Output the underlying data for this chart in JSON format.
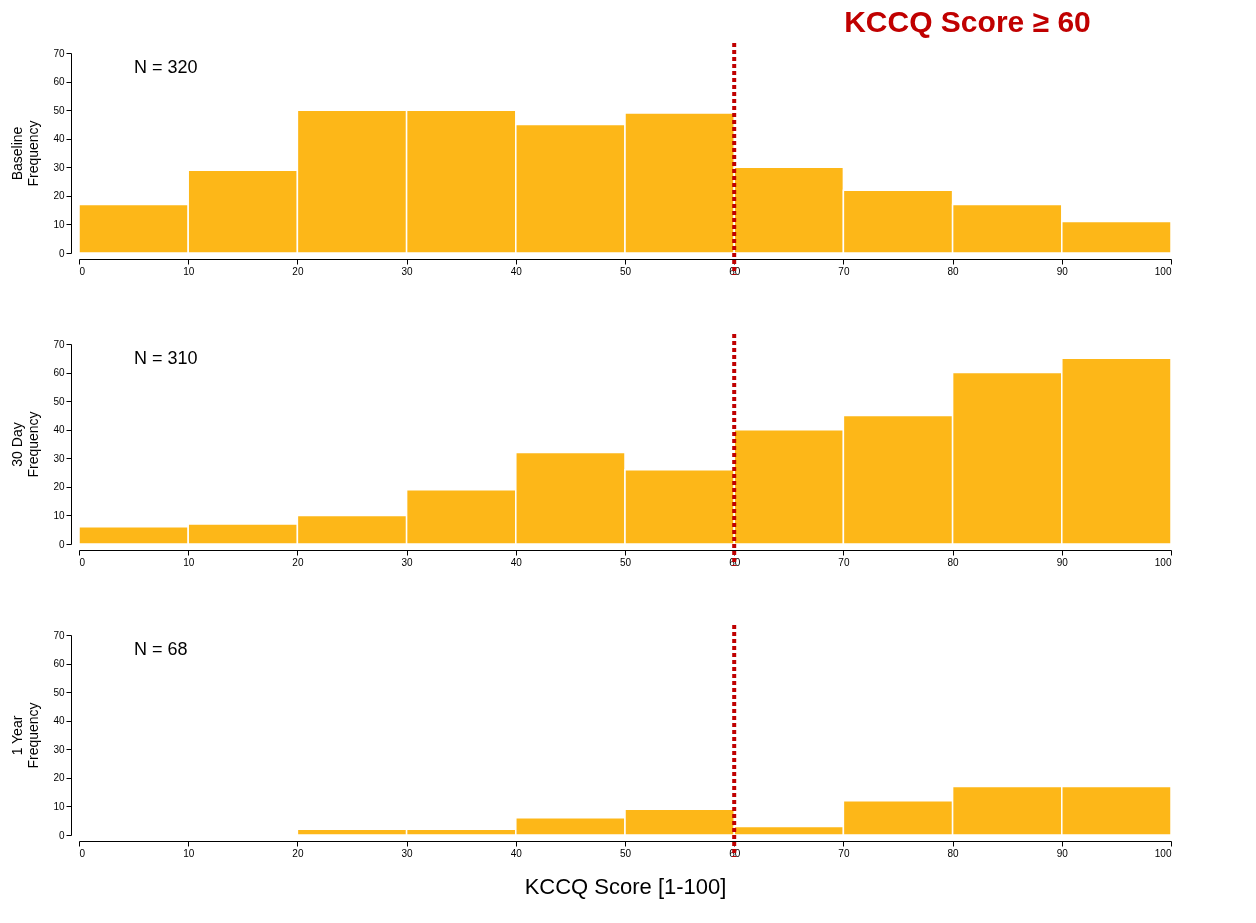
{
  "chart_data": [
    {
      "type": "histogram",
      "ylabel": "Baseline\nFrequency",
      "bins": [
        0,
        10,
        20,
        30,
        40,
        50,
        60,
        70,
        80,
        90,
        100
      ],
      "color": "#fdb718",
      "values": [
        17,
        29,
        50,
        50,
        45,
        49,
        30,
        22,
        17,
        11
      ],
      "xlim": [
        0,
        100
      ],
      "xticks": [
        0,
        10,
        20,
        30,
        40,
        50,
        60,
        70,
        80,
        90,
        100
      ],
      "ylim": [
        0,
        70
      ],
      "yticks": [
        0,
        10,
        20,
        30,
        40,
        50,
        60,
        70
      ],
      "grid": false,
      "annotations": [
        "N =  320"
      ],
      "ref_lines": [
        {
          "axis": "x",
          "value": 60,
          "label": "KCCQ Score ≥ 60",
          "color": "#c00000",
          "line_style": "dotted"
        }
      ]
    },
    {
      "type": "histogram",
      "ylabel": "30 Day\nFrequency",
      "bins": [
        0,
        10,
        20,
        30,
        40,
        50,
        60,
        70,
        80,
        90,
        100
      ],
      "color": "#fdb718",
      "values": [
        6,
        7,
        10,
        19,
        32,
        26,
        40,
        45,
        60,
        65
      ],
      "xlim": [
        0,
        100
      ],
      "xticks": [
        0,
        10,
        20,
        30,
        40,
        50,
        60,
        70,
        80,
        90,
        100
      ],
      "ylim": [
        0,
        70
      ],
      "yticks": [
        0,
        10,
        20,
        30,
        40,
        50,
        60,
        70
      ],
      "grid": false,
      "annotations": [
        "N =  310"
      ],
      "ref_lines": [
        {
          "axis": "x",
          "value": 60,
          "color": "#c00000",
          "line_style": "dotted"
        }
      ]
    },
    {
      "type": "histogram",
      "ylabel": "1 Year\nFrequency",
      "xlabel": "KCCQ Score [1-100]",
      "bins": [
        0,
        10,
        20,
        30,
        40,
        50,
        60,
        70,
        80,
        90,
        100
      ],
      "color": "#fdb718",
      "values": [
        0,
        0,
        2,
        2,
        6,
        9,
        3,
        12,
        17,
        17
      ],
      "xlim": [
        0,
        100
      ],
      "xticks": [
        0,
        10,
        20,
        30,
        40,
        50,
        60,
        70,
        80,
        90,
        100
      ],
      "ylim": [
        0,
        70
      ],
      "yticks": [
        0,
        10,
        20,
        30,
        40,
        50,
        60,
        70
      ],
      "grid": false,
      "annotations": [
        "N =  68"
      ],
      "ref_lines": [
        {
          "axis": "x",
          "value": 60,
          "color": "#c00000",
          "line_style": "dotted"
        }
      ]
    }
  ]
}
